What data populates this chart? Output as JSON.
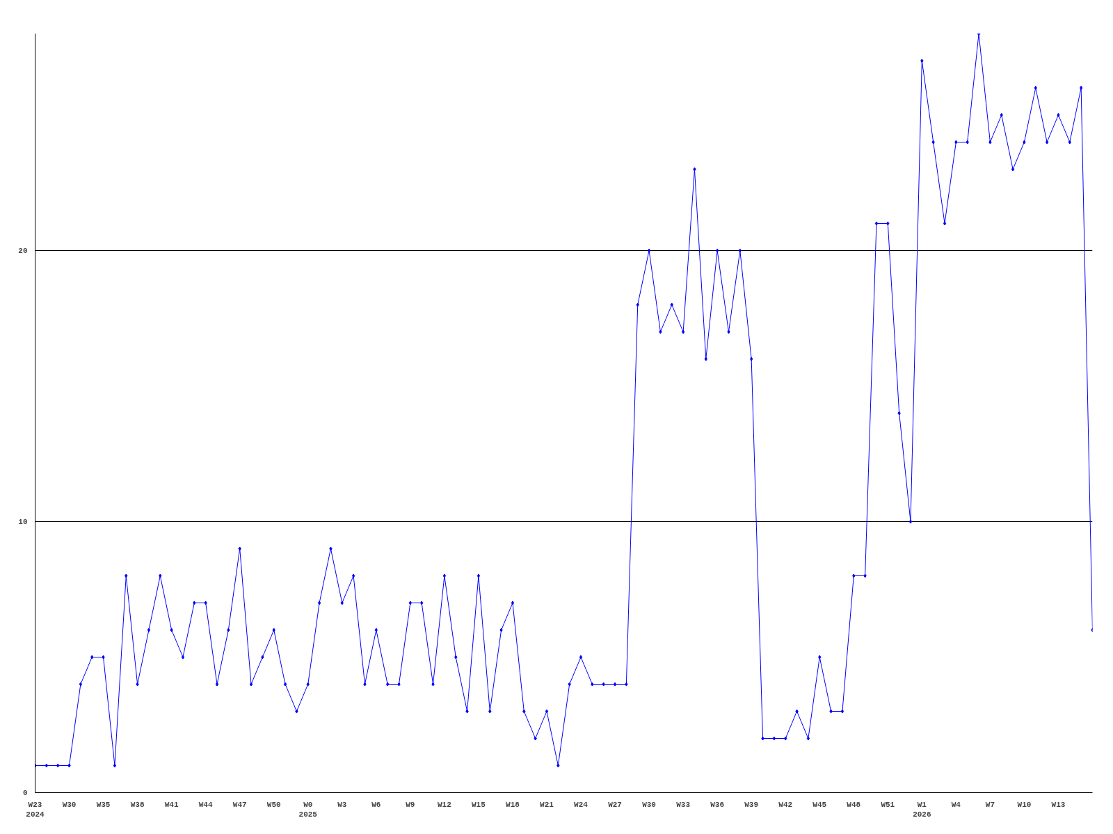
{
  "chart_data": {
    "type": "line",
    "categories": [
      "W23\n2024",
      null,
      null,
      "W30",
      null,
      null,
      "W35",
      null,
      null,
      "W38",
      null,
      null,
      "W41",
      null,
      null,
      "W44",
      null,
      null,
      "W47",
      null,
      null,
      "W50",
      null,
      null,
      "W0\n2025",
      null,
      null,
      "W3",
      null,
      null,
      "W6",
      null,
      null,
      "W9",
      null,
      null,
      "W12",
      null,
      null,
      "W15",
      null,
      null,
      "W18",
      null,
      null,
      "W21",
      null,
      null,
      "W24",
      null,
      null,
      "W27",
      null,
      null,
      "W30",
      null,
      null,
      "W33",
      null,
      null,
      "W36",
      null,
      null,
      "W39",
      null,
      null,
      "W42",
      null,
      null,
      "W45",
      null,
      null,
      "W48",
      null,
      null,
      "W51",
      null,
      null,
      "W1\n2026",
      null,
      null,
      "W4",
      null,
      null,
      "W7",
      null,
      null,
      "W10",
      null,
      null,
      "W13",
      null,
      null,
      null
    ],
    "series": [
      {
        "color": "#0000ff",
        "values": [
          1,
          1,
          1,
          1,
          4,
          5,
          5,
          1,
          8,
          4,
          6,
          8,
          6,
          5,
          7,
          7,
          4,
          6,
          9,
          4,
          5,
          6,
          4,
          3,
          4,
          7,
          9,
          7,
          8,
          4,
          6,
          4,
          4,
          7,
          7,
          4,
          8,
          5,
          3,
          8,
          3,
          6,
          7,
          3,
          2,
          3,
          1,
          4,
          5,
          4,
          4,
          4,
          4,
          18,
          20,
          17,
          18,
          17,
          23,
          16,
          20,
          17,
          20,
          16,
          2,
          2,
          2,
          3,
          2,
          5,
          3,
          3,
          8,
          8,
          21,
          21,
          14,
          10,
          27,
          24,
          21,
          24,
          24,
          28,
          24,
          25,
          23,
          24,
          26,
          24,
          25,
          24,
          26,
          6
        ]
      }
    ],
    "ylim": [
      0,
      28
    ],
    "yticks": [
      0,
      10,
      20
    ],
    "grid": "y",
    "marker": "diamond",
    "line_style": "solid"
  }
}
